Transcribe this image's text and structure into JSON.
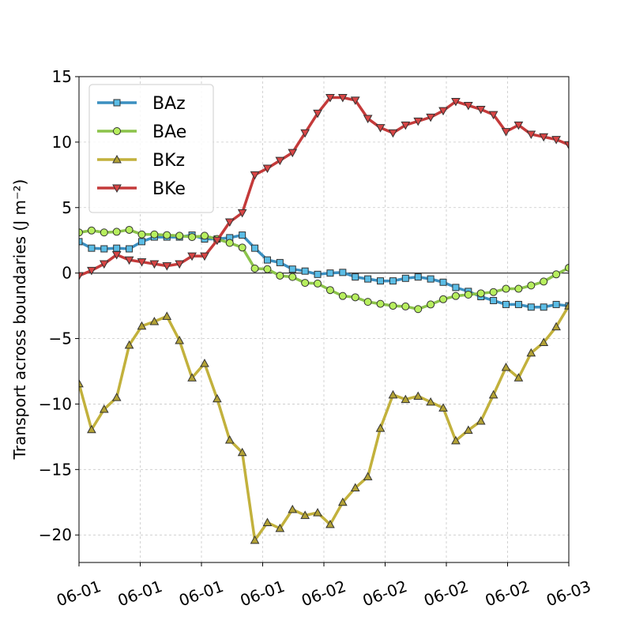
{
  "chart_data": {
    "type": "line",
    "ylabel": "Transport across boundaries (J m⁻²)",
    "x": [
      0,
      1,
      2,
      3,
      4,
      5,
      6,
      7,
      8,
      9,
      10,
      11,
      12,
      13,
      14,
      15,
      16,
      17,
      18,
      19,
      20,
      21,
      22,
      23,
      24,
      25,
      26,
      27,
      28,
      29,
      30,
      31,
      32,
      33,
      34,
      35,
      36,
      37,
      38,
      39
    ],
    "xlim": [
      0,
      39
    ],
    "xticks": [
      {
        "value": 0,
        "label": "06-01"
      },
      {
        "value": 4.875,
        "label": "06-01"
      },
      {
        "value": 9.75,
        "label": "06-01"
      },
      {
        "value": 14.625,
        "label": "06-01"
      },
      {
        "value": 19.5,
        "label": "06-02"
      },
      {
        "value": 24.375,
        "label": "06-02"
      },
      {
        "value": 29.25,
        "label": "06-02"
      },
      {
        "value": 34.125,
        "label": "06-02"
      },
      {
        "value": 39,
        "label": "06-03"
      }
    ],
    "ylim": [
      -22.1,
      15
    ],
    "yticks": [
      {
        "value": -20,
        "label": "−20"
      },
      {
        "value": -15,
        "label": "−15"
      },
      {
        "value": -10,
        "label": "−10"
      },
      {
        "value": -5,
        "label": "−5"
      },
      0,
      5,
      10,
      15
    ],
    "grid": true,
    "reference_line": 0,
    "legend": "upper left",
    "series": [
      {
        "name": "BAz",
        "color": "#3b8fc0",
        "marker_color": "#5bbde6",
        "marker": "square",
        "values": [
          2.4,
          1.9,
          1.85,
          1.9,
          1.85,
          2.4,
          2.75,
          2.75,
          2.75,
          2.9,
          2.6,
          2.6,
          2.7,
          2.9,
          1.9,
          1.0,
          0.8,
          0.3,
          0.15,
          -0.1,
          0.0,
          0.05,
          -0.3,
          -0.45,
          -0.6,
          -0.6,
          -0.4,
          -0.3,
          -0.45,
          -0.7,
          -1.1,
          -1.4,
          -1.8,
          -2.1,
          -2.4,
          -2.4,
          -2.6,
          -2.6,
          -2.4,
          -2.5
        ]
      },
      {
        "name": "BAe",
        "color": "#8bc34a",
        "marker_color": "#b7ef5e",
        "marker": "circle",
        "values": [
          3.1,
          3.25,
          3.1,
          3.15,
          3.3,
          2.95,
          2.95,
          2.9,
          2.85,
          2.75,
          2.85,
          2.6,
          2.3,
          1.95,
          0.35,
          0.3,
          -0.2,
          -0.3,
          -0.75,
          -0.8,
          -1.3,
          -1.75,
          -1.85,
          -2.2,
          -2.35,
          -2.5,
          -2.55,
          -2.75,
          -2.4,
          -2.0,
          -1.75,
          -1.65,
          -1.55,
          -1.45,
          -1.2,
          -1.2,
          -0.95,
          -0.65,
          -0.1,
          0.4
        ]
      },
      {
        "name": "BKz",
        "color": "#c2b13c",
        "marker_color": "#b3a235",
        "marker": "triangle-up",
        "values": [
          -8.45,
          -11.95,
          -10.4,
          -9.5,
          -5.5,
          -4.05,
          -3.7,
          -3.3,
          -5.15,
          -8.0,
          -6.9,
          -9.6,
          -12.75,
          -13.7,
          -20.4,
          -19.05,
          -19.5,
          -18.05,
          -18.5,
          -18.3,
          -19.2,
          -17.5,
          -16.4,
          -15.55,
          -11.85,
          -9.3,
          -9.65,
          -9.4,
          -9.85,
          -10.3,
          -12.8,
          -12.0,
          -11.3,
          -9.3,
          -7.2,
          -8.0,
          -6.1,
          -5.3,
          -4.1,
          -2.5
        ]
      },
      {
        "name": "BKe",
        "color": "#c43a3a",
        "marker_color": "#d84545",
        "marker": "triangle-down",
        "values": [
          -0.2,
          0.2,
          0.7,
          1.4,
          1.0,
          0.85,
          0.7,
          0.55,
          0.7,
          1.3,
          1.3,
          2.5,
          3.9,
          4.6,
          7.5,
          8.0,
          8.6,
          9.2,
          10.7,
          12.2,
          13.4,
          13.4,
          13.2,
          11.8,
          11.1,
          10.7,
          11.3,
          11.6,
          11.9,
          12.4,
          13.1,
          12.8,
          12.5,
          12.1,
          10.8,
          11.3,
          10.6,
          10.4,
          10.2,
          9.8
        ]
      }
    ]
  }
}
